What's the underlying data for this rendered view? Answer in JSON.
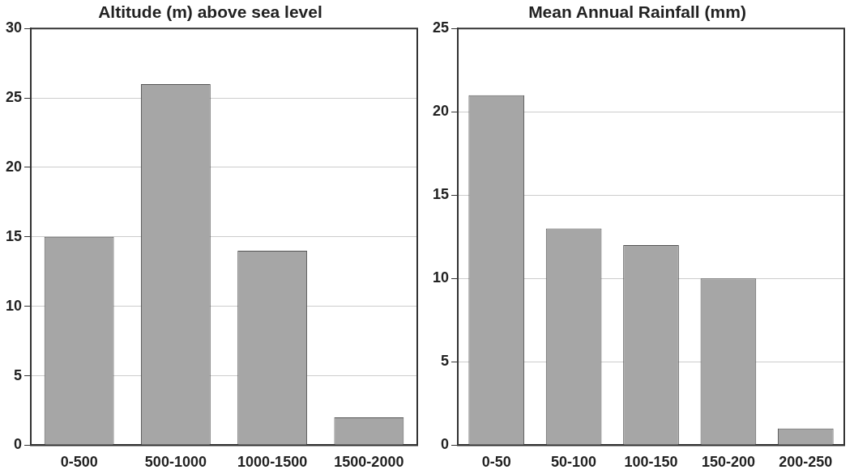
{
  "chart_data": [
    {
      "type": "bar",
      "title": "Altitude (m) above sea level",
      "categories": [
        "0-500",
        "500-1000",
        "1000-1500",
        "1500-2000"
      ],
      "values": [
        15,
        26,
        14,
        2
      ],
      "color": "#a6a6a6",
      "ylim": [
        0,
        30
      ],
      "yticks": [
        0,
        5,
        10,
        15,
        20,
        25,
        30
      ],
      "grid": "y",
      "legend": false
    },
    {
      "type": "bar",
      "title": "Mean Annual Rainfall (mm)",
      "categories": [
        "0-50",
        "50-100",
        "100-150",
        "150-200",
        "200-250"
      ],
      "values": [
        21,
        13,
        12,
        10,
        1
      ],
      "color": "#a6a6a6",
      "ylim": [
        0,
        25
      ],
      "yticks": [
        0,
        5,
        10,
        15,
        20,
        25
      ],
      "grid": "y",
      "legend": false
    }
  ]
}
